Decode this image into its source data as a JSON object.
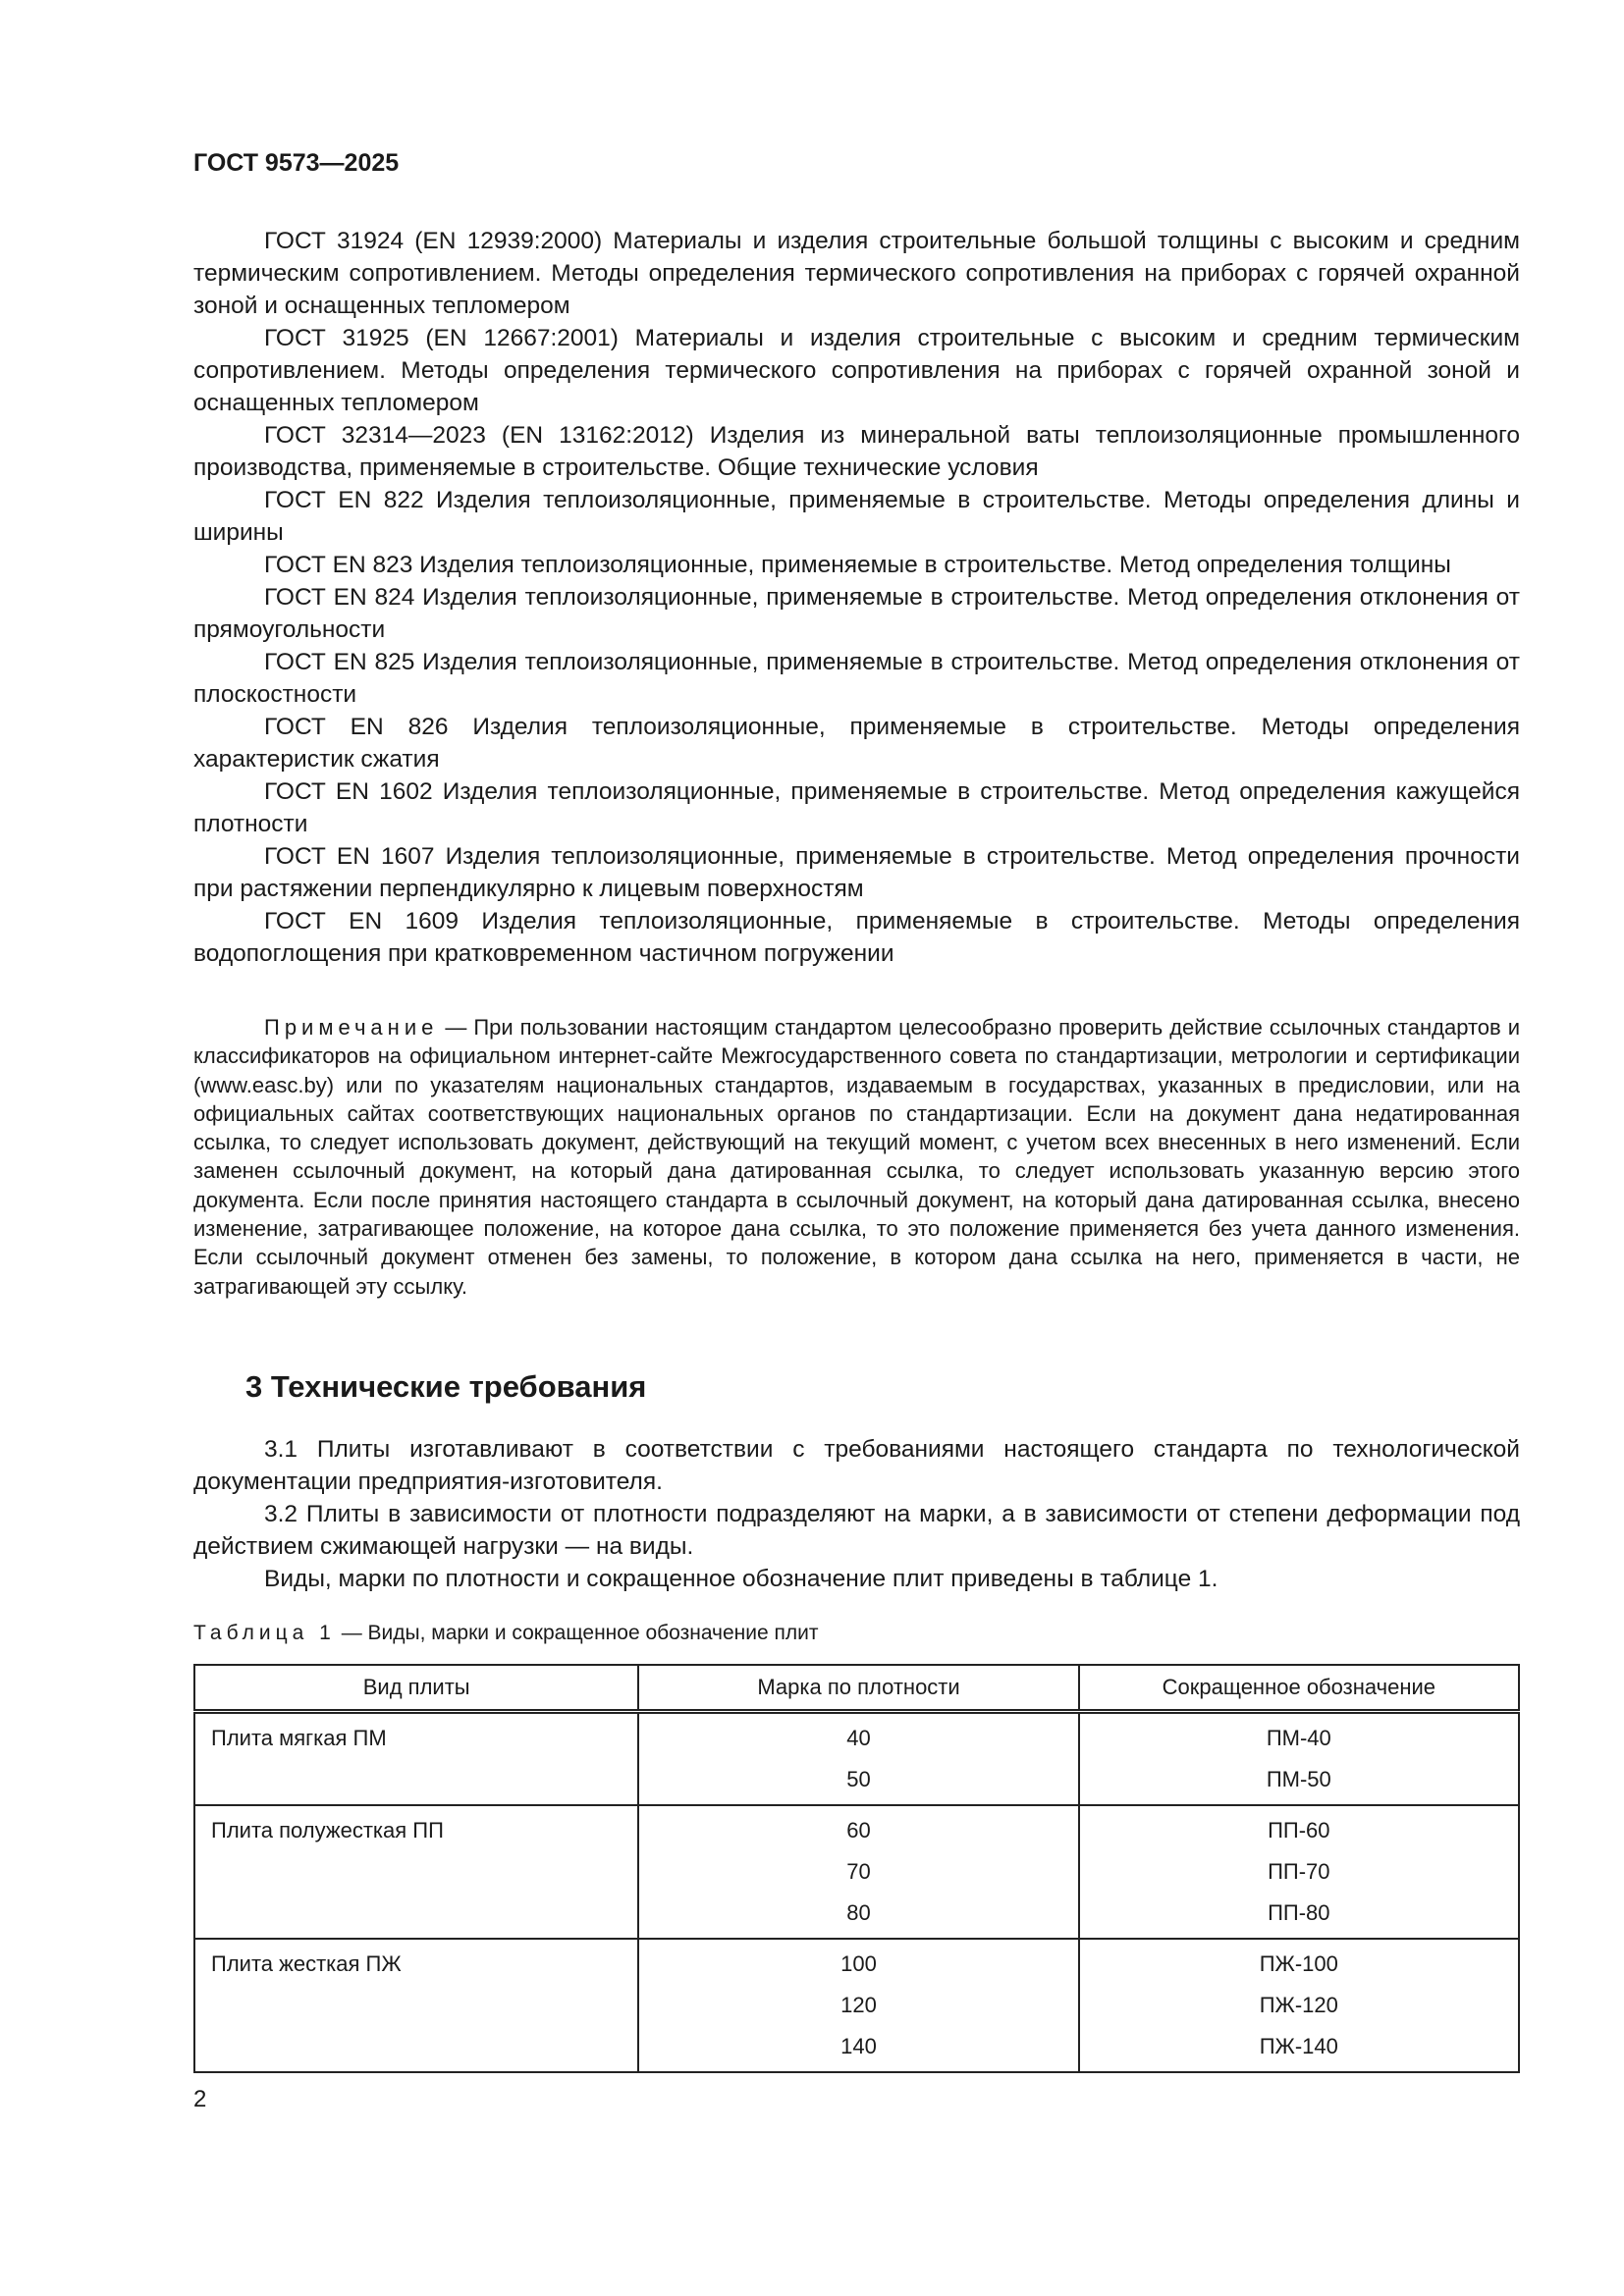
{
  "header": "ГОСТ 9573—2025",
  "references": [
    "ГОСТ 31924 (EN 12939:2000) Материалы и изделия строительные большой толщины с высоким и средним термическим сопротивлением. Методы определения термического сопротивления на приборах с горячей охранной зоной и оснащенных тепломером",
    "ГОСТ 31925 (EN 12667:2001) Материалы и изделия строительные с высоким и средним термическим сопротивлением. Методы определения термического сопротивления на приборах с горячей охранной зоной и оснащенных тепломером",
    "ГОСТ 32314—2023 (EN 13162:2012) Изделия из минеральной ваты теплоизоляционные промышленного производства, применяемые в строительстве. Общие технические условия",
    "ГОСТ EN 822 Изделия теплоизоляционные, применяемые в строительстве. Методы определения длины и ширины",
    "ГОСТ EN 823 Изделия теплоизоляционные, применяемые в строительстве. Метод определения толщины",
    "ГОСТ EN 824 Изделия теплоизоляционные, применяемые в строительстве. Метод определения отклонения от прямоугольности",
    "ГОСТ EN 825 Изделия теплоизоляционные, применяемые в строительстве. Метод определения отклонения от плоскостности",
    "ГОСТ EN 826 Изделия теплоизоляционные, применяемые в строительстве. Методы определения характеристик сжатия",
    "ГОСТ EN 1602 Изделия теплоизоляционные, применяемые в строительстве. Метод определения кажущейся плотности",
    "ГОСТ EN 1607 Изделия теплоизоляционные, применяемые в строительстве. Метод определения прочности при растяжении перпендикулярно к лицевым поверхностям",
    "ГОСТ EN 1609 Изделия теплоизоляционные, применяемые в строительстве. Методы определения водопоглощения при кратковременном частичном погружении"
  ],
  "note": {
    "label": "Примечание",
    "text": " — При пользовании настоящим стандартом целесообразно проверить действие ссылочных стандартов и классификаторов на официальном интернет-сайте Межгосударственного совета по стандартизации, метрологии и сертификации (www.easc.by) или по указателям национальных стандартов, издаваемым в государствах, указанных в предисловии, или на официальных сайтах соответствующих национальных органов по стандартизации. Если на документ дана недатированная ссылка, то следует использовать документ, действующий на текущий момент, с учетом всех внесенных в него изменений. Если заменен ссылочный документ, на который дана датированная ссылка, то следует использовать указанную версию этого документа. Если после принятия настоящего стандарта в ссылочный документ, на который дана датированная ссылка, внесено изменение, затрагивающее положение, на которое дана ссылка, то это положение применяется без учета данного изменения. Если ссылочный документ отменен без замены, то положение, в котором дана ссылка на него, применяется в части, не затрагивающей эту ссылку."
  },
  "section": {
    "title": "3 Технические требования"
  },
  "requirements": [
    "3.1 Плиты изготавливают в соответствии с требованиями настоящего стандарта по технологической документации предприятия-изготовителя.",
    "3.2 Плиты в зависимости от плотности подразделяют на марки, а в зависимости от степени деформации под действием сжимающей нагрузки — на виды.",
    "Виды, марки по плотности и сокращенное обозначение плит приведены в таблице 1."
  ],
  "table": {
    "caption_label": "Таблица 1",
    "caption_text": " — Виды, марки и сокращенное обозначение плит",
    "headers": [
      "Вид плиты",
      "Марка по плотности",
      "Сокращенное обозначение"
    ],
    "groups": [
      {
        "type": "Плита мягкая ПМ",
        "grades": [
          "40",
          "50"
        ],
        "codes": [
          "ПМ-40",
          "ПМ-50"
        ]
      },
      {
        "type": "Плита полужесткая ПП",
        "grades": [
          "60",
          "70",
          "80"
        ],
        "codes": [
          "ПП-60",
          "ПП-70",
          "ПП-80"
        ]
      },
      {
        "type": "Плита жесткая ПЖ",
        "grades": [
          "100",
          "120",
          "140"
        ],
        "codes": [
          "ПЖ-100",
          "ПЖ-120",
          "ПЖ-140"
        ]
      }
    ]
  },
  "page_number": "2"
}
